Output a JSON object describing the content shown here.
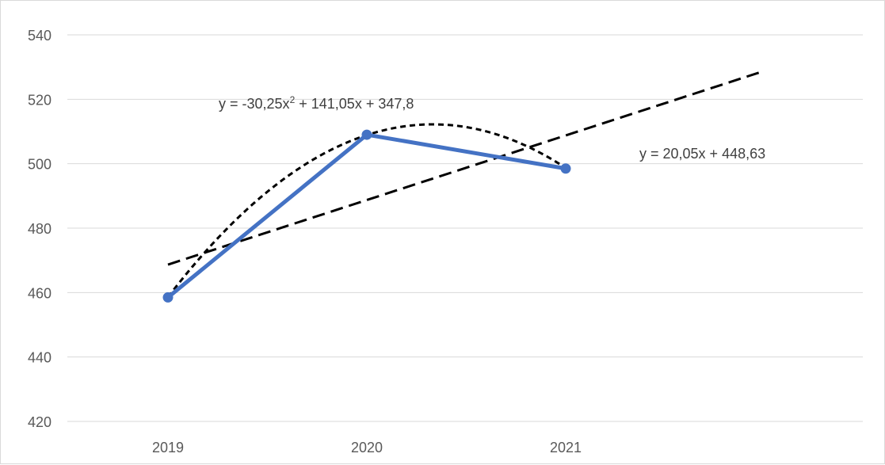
{
  "chart_data": {
    "type": "line",
    "title": "",
    "xlabel": "",
    "ylabel": "",
    "categories": [
      "2019",
      "2020",
      "2021"
    ],
    "x_positions": [
      1,
      2,
      3
    ],
    "series": [
      {
        "values": [
          458.5,
          509,
          498.5
        ],
        "color": "#4472c4",
        "markers": true
      }
    ],
    "trendlines": [
      {
        "type": "linear",
        "equation": "y = 20,05x + 448,63",
        "slope": 20.05,
        "intercept": 448.63,
        "x_range": [
          1,
          4.0
        ],
        "color": "#000000",
        "dash": "long"
      },
      {
        "type": "polynomial",
        "equation_prefix": "y = -30,25x",
        "equation_sup": "2",
        "equation_suffix": " + 141,05x + 347,8",
        "coefficients": [
          -30.25,
          141.05,
          347.8
        ],
        "x_range": [
          1,
          3
        ],
        "color": "#000000",
        "dash": "short"
      }
    ],
    "ylim": [
      420,
      540
    ],
    "yticks": [
      "540",
      "520",
      "500",
      "480",
      "460",
      "440",
      "420"
    ],
    "ytick_values": [
      540,
      520,
      500,
      480,
      460,
      440,
      420
    ],
    "grid": true,
    "legend": "none"
  }
}
